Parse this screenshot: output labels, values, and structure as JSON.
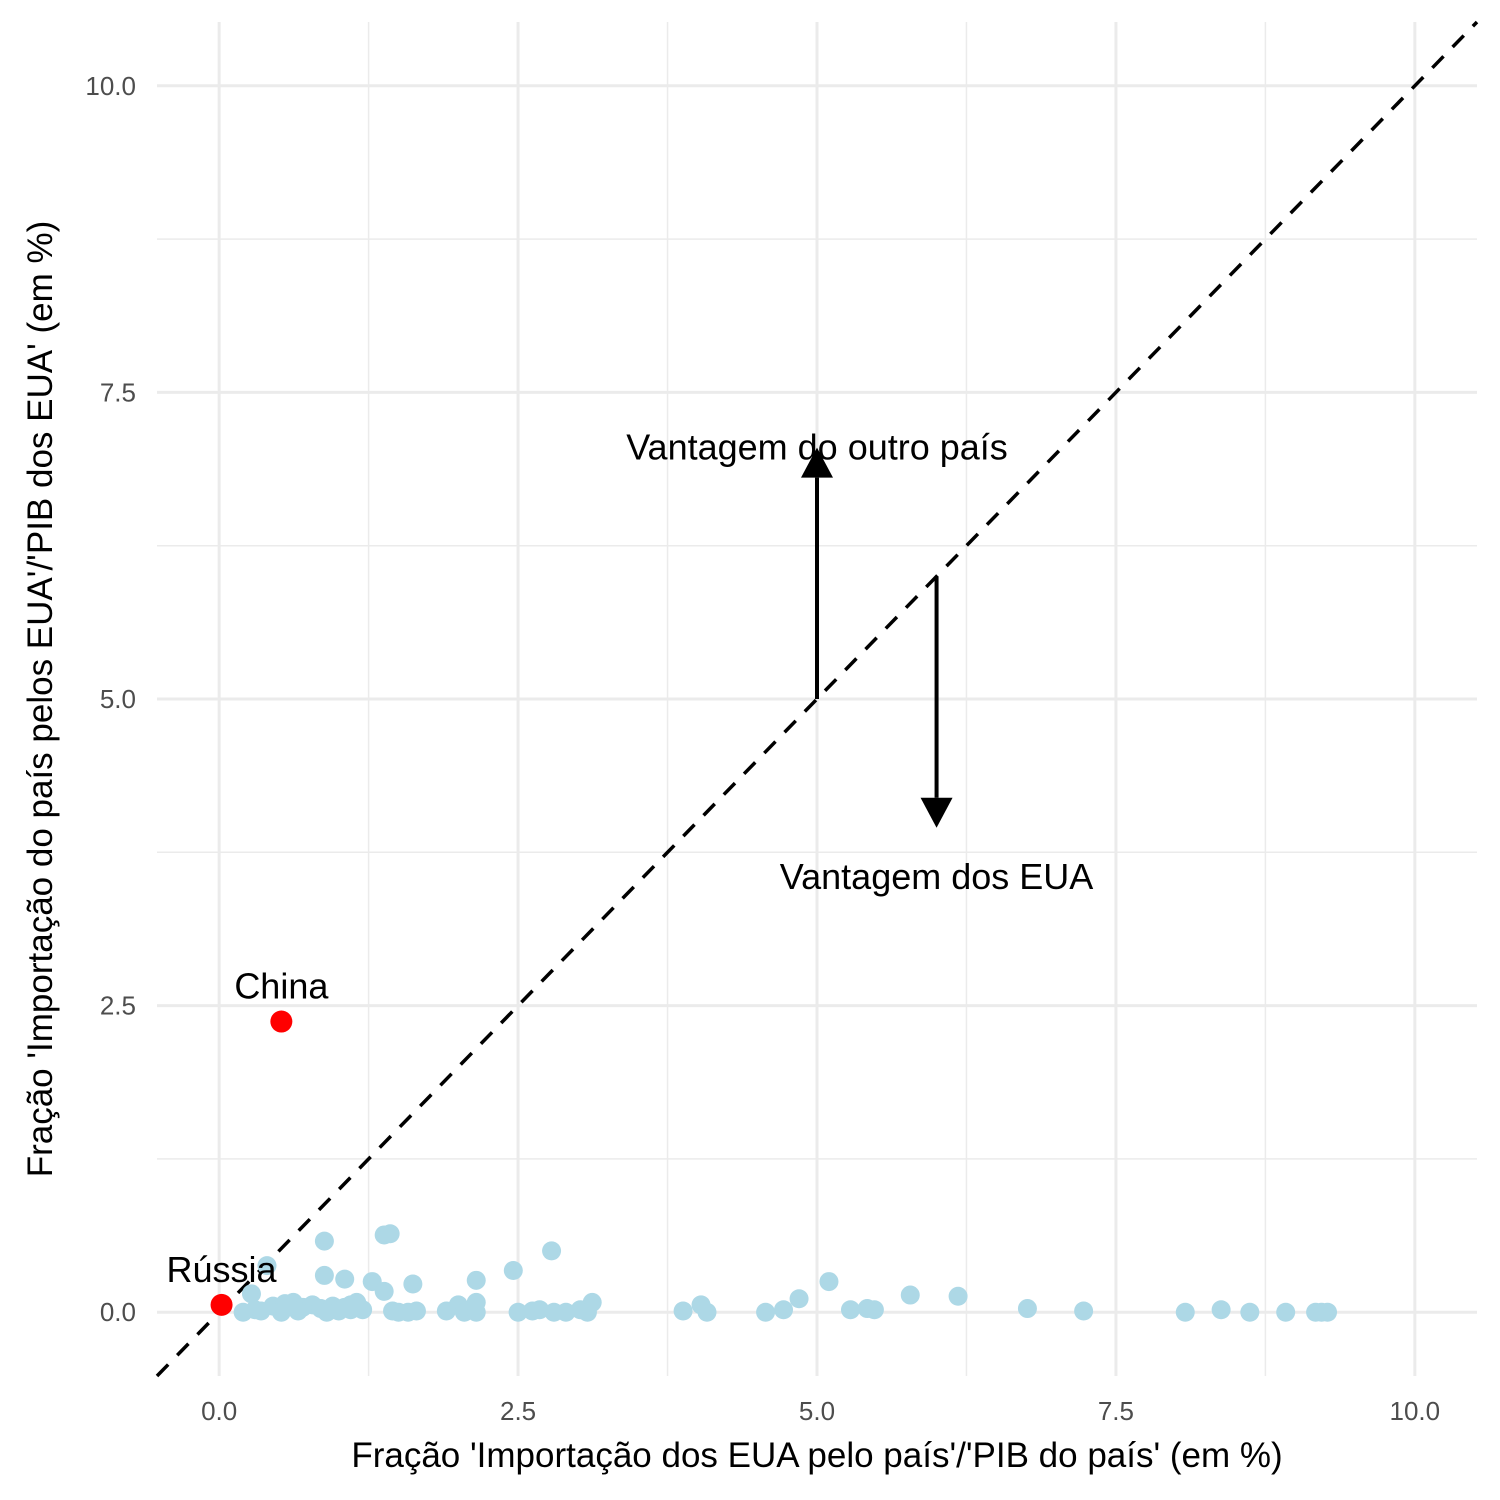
{
  "chart_data": {
    "type": "scatter",
    "xlabel": "Fração 'Importação dos EUA pelo país'/'PIB do país' (em %)",
    "ylabel": "Fração 'Importação do país pelos EUA'/'PIB dos EUA' (em %)",
    "xlim": [
      -0.52,
      10.52
    ],
    "ylim": [
      -0.52,
      10.52
    ],
    "x_ticks": [
      0,
      2.5,
      5,
      7.5,
      10
    ],
    "x_tick_labels": [
      "0.0",
      "2.5",
      "5.0",
      "7.5",
      "10.0"
    ],
    "y_ticks": [
      0,
      2.5,
      5,
      7.5,
      10
    ],
    "y_tick_labels": [
      "0.0",
      "2.5",
      "5.0",
      "7.5",
      "10.0"
    ],
    "grid": true,
    "colors": {
      "points": "#add8e6",
      "highlight": "#ff0000",
      "grid": "#ebebeb",
      "line": "#000000"
    },
    "reference_line": {
      "type": "identity",
      "style": "dashed"
    },
    "highlighted": [
      {
        "label": "China",
        "x": 0.52,
        "y": 2.37
      },
      {
        "label": "Rússia",
        "x": 0.02,
        "y": 0.06
      }
    ],
    "points": [
      [
        0.4,
        0.38
      ],
      [
        0.88,
        0.58
      ],
      [
        1.38,
        0.63
      ],
      [
        1.43,
        0.64
      ],
      [
        2.78,
        0.5
      ],
      [
        0.88,
        0.3
      ],
      [
        1.05,
        0.27
      ],
      [
        1.28,
        0.25
      ],
      [
        1.62,
        0.23
      ],
      [
        2.15,
        0.26
      ],
      [
        2.46,
        0.34
      ],
      [
        1.38,
        0.17
      ],
      [
        0.27,
        0.15
      ],
      [
        5.1,
        0.25
      ],
      [
        5.78,
        0.14
      ],
      [
        6.18,
        0.13
      ],
      [
        4.85,
        0.11
      ],
      [
        4.03,
        0.06
      ],
      [
        2.0,
        0.06
      ],
      [
        3.12,
        0.08
      ],
      [
        0.3,
        0.02
      ],
      [
        0.45,
        0.05
      ],
      [
        0.55,
        0.07
      ],
      [
        0.62,
        0.08
      ],
      [
        0.7,
        0.04
      ],
      [
        0.78,
        0.06
      ],
      [
        0.85,
        0.03
      ],
      [
        0.95,
        0.05
      ],
      [
        1.05,
        0.04
      ],
      [
        1.15,
        0.08
      ],
      [
        1.2,
        0.02
      ],
      [
        0.35,
        0.01
      ],
      [
        0.2,
        0.0
      ],
      [
        0.52,
        0.0
      ],
      [
        0.66,
        0.01
      ],
      [
        0.9,
        0.0
      ],
      [
        1.0,
        0.01
      ],
      [
        1.1,
        0.02
      ],
      [
        1.45,
        0.01
      ],
      [
        1.5,
        0.0
      ],
      [
        1.58,
        0.0
      ],
      [
        1.65,
        0.01
      ],
      [
        1.9,
        0.01
      ],
      [
        2.05,
        0.0
      ],
      [
        2.15,
        0.0
      ],
      [
        2.5,
        0.0
      ],
      [
        2.62,
        0.01
      ],
      [
        2.68,
        0.02
      ],
      [
        2.8,
        0.0
      ],
      [
        2.9,
        0.0
      ],
      [
        3.02,
        0.02
      ],
      [
        3.08,
        0.0
      ],
      [
        3.88,
        0.01
      ],
      [
        4.08,
        0.0
      ],
      [
        4.57,
        0.0
      ],
      [
        4.72,
        0.02
      ],
      [
        5.28,
        0.02
      ],
      [
        5.42,
        0.03
      ],
      [
        5.48,
        0.02
      ],
      [
        6.76,
        0.03
      ],
      [
        7.23,
        0.01
      ],
      [
        8.08,
        0.0
      ],
      [
        8.38,
        0.02
      ],
      [
        8.62,
        0.0
      ],
      [
        8.92,
        0.0
      ],
      [
        9.17,
        0.0
      ],
      [
        9.22,
        0.0
      ],
      [
        9.27,
        0.0
      ],
      [
        2.15,
        0.08
      ],
      [
        1.1,
        0.06
      ]
    ],
    "annotations": [
      {
        "text": "Vantagem do outro país",
        "x": 5.0,
        "y": 7.05
      },
      {
        "text": "Vantagem dos EUA",
        "x": 6.0,
        "y": 3.55
      }
    ],
    "arrows": [
      {
        "from": [
          5.0,
          5.0
        ],
        "to": [
          5.0,
          7.05
        ]
      },
      {
        "from": [
          6.0,
          6.0
        ],
        "to": [
          6.0,
          3.95
        ]
      }
    ]
  }
}
